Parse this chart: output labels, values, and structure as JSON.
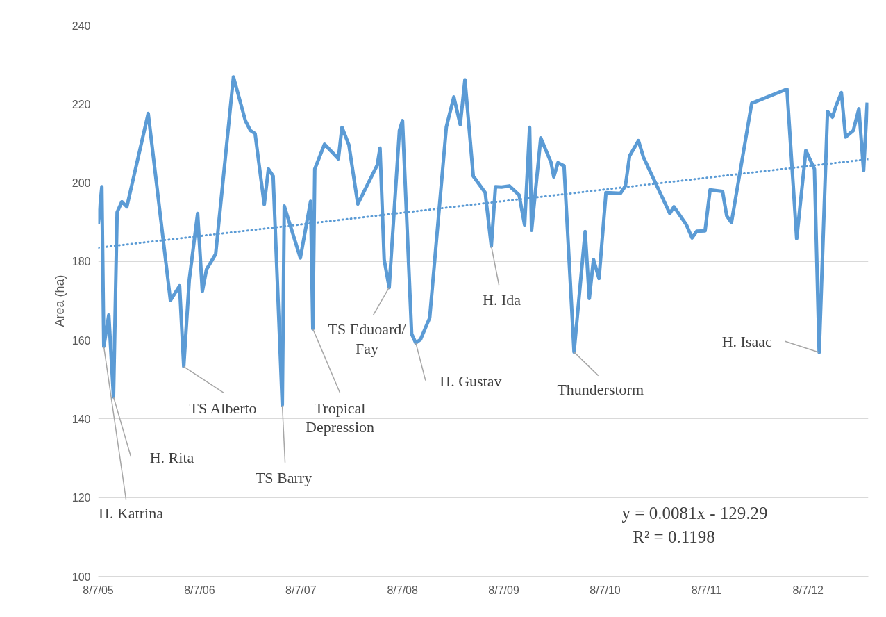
{
  "chart_data": {
    "type": "line",
    "ylabel": "Area (ha)",
    "xlim": [
      "2005-08-07",
      "2013-03-12"
    ],
    "ylim": [
      100,
      240
    ],
    "xticks": [
      {
        "value": "2005-08-07",
        "label": "8/7/05"
      },
      {
        "value": "2006-08-07",
        "label": "8/7/06"
      },
      {
        "value": "2007-08-07",
        "label": "8/7/07"
      },
      {
        "value": "2008-08-07",
        "label": "8/7/08"
      },
      {
        "value": "2009-08-07",
        "label": "8/7/09"
      },
      {
        "value": "2010-08-07",
        "label": "8/7/10"
      },
      {
        "value": "2011-08-07",
        "label": "8/7/11"
      },
      {
        "value": "2012-08-07",
        "label": "8/7/12"
      }
    ],
    "yticks": [
      100,
      120,
      140,
      160,
      180,
      200,
      220,
      240
    ],
    "grid": "y",
    "series": [
      {
        "color": "#5b9bd5",
        "line_style": "solid",
        "x": [
          "2005-08-07",
          "2005-08-20",
          "2005-08-27",
          "2005-09-14",
          "2005-10-01",
          "2005-10-14",
          "2005-10-31",
          "2005-11-18",
          "2006-02-03",
          "2006-04-24",
          "2006-05-27",
          "2006-06-11",
          "2006-07-01",
          "2006-07-31",
          "2006-08-17",
          "2006-09-01",
          "2006-10-04",
          "2006-12-07",
          "2007-01-19",
          "2007-02-06",
          "2007-02-23",
          "2007-03-28",
          "2007-04-12",
          "2007-04-29",
          "2007-06-01",
          "2007-06-08",
          "2007-08-05",
          "2007-09-11",
          "2007-09-19",
          "2007-09-26",
          "2007-10-31",
          "2007-12-20",
          "2008-01-02",
          "2008-01-27",
          "2008-02-28",
          "2008-05-08",
          "2008-05-18",
          "2008-06-02",
          "2008-06-20",
          "2008-07-27",
          "2008-08-07",
          "2008-09-09",
          "2008-09-24",
          "2008-10-11",
          "2008-11-13",
          "2009-01-12",
          "2009-02-08",
          "2009-03-03",
          "2009-03-20",
          "2009-04-19",
          "2009-06-01",
          "2009-06-23",
          "2009-07-08",
          "2009-07-30",
          "2009-08-27",
          "2009-10-01",
          "2009-10-21",
          "2009-11-08",
          "2009-11-15",
          "2009-12-18",
          "2010-01-24",
          "2010-02-03",
          "2010-02-18",
          "2010-03-12",
          "2010-04-17",
          "2010-05-27",
          "2010-06-11",
          "2010-06-26",
          "2010-07-16",
          "2010-08-10",
          "2010-10-01",
          "2010-10-19",
          "2010-11-03",
          "2010-12-05",
          "2010-12-23",
          "2011-03-28",
          "2011-04-12",
          "2011-05-27",
          "2011-06-16",
          "2011-07-03",
          "2011-08-02",
          "2011-08-20",
          "2011-10-04",
          "2011-10-19",
          "2011-11-05",
          "2012-01-17",
          "2012-05-23",
          "2012-06-27",
          "2012-07-30",
          "2012-08-30",
          "2012-09-16",
          "2012-10-16",
          "2012-11-03",
          "2012-11-15",
          "2012-12-05",
          "2012-12-20",
          "2013-01-17",
          "2013-02-06",
          "2013-02-23",
          "2013-03-08"
        ],
        "values": [
          189.5,
          199.0,
          158.4,
          166.4,
          145.6,
          192.5,
          195.2,
          193.9,
          217.6,
          170.1,
          173.8,
          153.3,
          175.4,
          192.2,
          172.4,
          178.0,
          181.9,
          226.9,
          215.8,
          213.3,
          212.5,
          194.5,
          203.5,
          201.7,
          143.4,
          194.1,
          180.9,
          195.3,
          162.9,
          203.5,
          209.8,
          206.1,
          214.1,
          209.6,
          194.6,
          204.5,
          208.8,
          180.5,
          173.4,
          213.3,
          215.8,
          161.6,
          159.3,
          160.2,
          165.7,
          214.2,
          221.8,
          214.8,
          226.2,
          201.7,
          197.5,
          183.9,
          199.0,
          198.9,
          199.2,
          196.9,
          189.3,
          214.1,
          187.9,
          211.4,
          205.2,
          201.5,
          205.1,
          204.3,
          157.0,
          187.6,
          170.6,
          180.5,
          175.7,
          197.5,
          197.3,
          199.2,
          206.8,
          210.7,
          206.5,
          192.2,
          193.9,
          189.3,
          186.0,
          187.7,
          187.8,
          198.2,
          197.8,
          191.6,
          189.9,
          220.2,
          223.8,
          185.8,
          208.2,
          203.5,
          156.9,
          218.1,
          216.7,
          219.4,
          222.9,
          211.6,
          213.3,
          218.8,
          203.1,
          220.4
        ]
      },
      {
        "color": "#5b9bd5",
        "line_style": "dotted",
        "x": [
          "2005-08-07",
          "2013-03-12"
        ],
        "values": [
          183.5,
          206.0
        ]
      }
    ],
    "annotations": [
      {
        "text": "H. Katrina",
        "x": "2005-08-27",
        "y": 158.4
      },
      {
        "text": "H. Rita",
        "x": "2005-10-01",
        "y": 145.6
      },
      {
        "text": "TS Alberto",
        "x": "2006-06-11",
        "y": 153.3
      },
      {
        "text": "TS Barry",
        "x": "2007-06-01",
        "y": 143.4
      },
      {
        "text": "Tropical\nDepression",
        "x": "2007-09-19",
        "y": 162.9
      },
      {
        "text": "TS Eduoard/\nFay",
        "x": "2008-06-20",
        "y": 173.4
      },
      {
        "text": "H. Gustav",
        "x": "2008-09-24",
        "y": 159.3
      },
      {
        "text": "H. Ida",
        "x": "2009-06-23",
        "y": 183.9
      },
      {
        "text": "Thunderstorm",
        "x": "2010-04-17",
        "y": 157.0
      },
      {
        "text": "H. Isaac",
        "x": "2012-09-16",
        "y": 156.9
      },
      "y = 0.0081x - 129.29",
      "R² = 0.1198"
    ]
  }
}
